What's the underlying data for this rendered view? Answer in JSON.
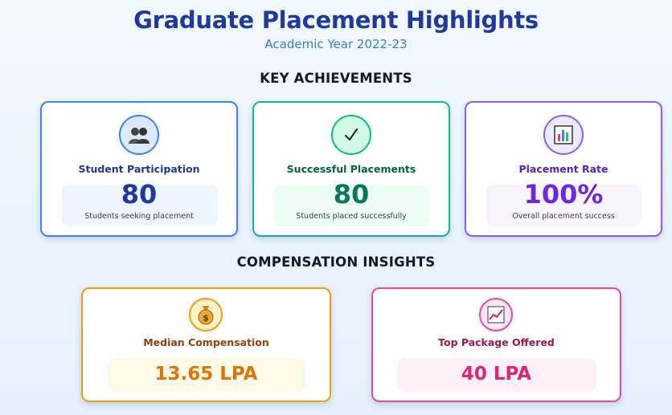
{
  "header": {
    "title": "Graduate Placement Highlights",
    "subtitle": "Academic Year 2022-23"
  },
  "sections": {
    "achievements_heading": "KEY ACHIEVEMENTS",
    "compensation_heading": "COMPENSATION INSIGHTS"
  },
  "achievements": [
    {
      "icon": "students-icon",
      "label": "Student Participation",
      "value": "80",
      "caption": "Students seeking placement",
      "accent": "#3b82f6"
    },
    {
      "icon": "checkmark-icon",
      "label": "Successful Placements",
      "value": "80",
      "caption": "Students placed successfully",
      "accent": "#10b981"
    },
    {
      "icon": "bar-chart-icon",
      "label": "Placement Rate",
      "value": "100%",
      "caption": "Overall placement success",
      "accent": "#8b5cf6"
    }
  ],
  "compensation": [
    {
      "icon": "money-bag-icon",
      "label": "Median Compensation",
      "value": "13.65 LPA",
      "accent": "#f59e0b"
    },
    {
      "icon": "trend-up-chart-icon",
      "label": "Top Package Offered",
      "value": "40 LPA",
      "accent": "#ec4899"
    }
  ]
}
